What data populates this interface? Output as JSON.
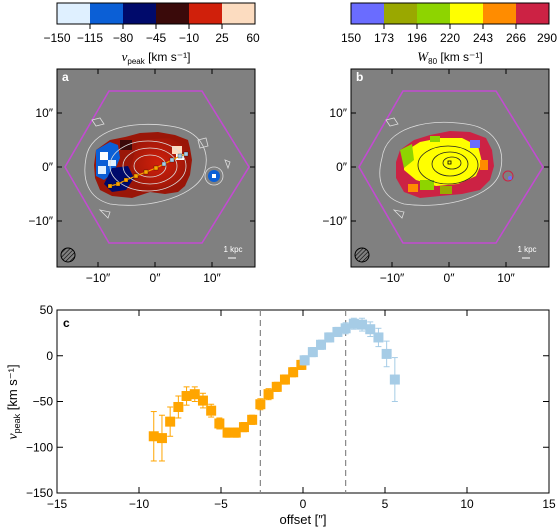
{
  "colorbars": [
    {
      "ticks": [
        "−150",
        "−115",
        "−80",
        "−45",
        "−10",
        "25",
        "60"
      ],
      "colors": [
        "#dff0ff",
        "#0b5fd6",
        "#000a6b",
        "#3a0a0a",
        "#d0200b",
        "#fcdcc0"
      ],
      "label_main": "v",
      "label_sub": "peak",
      "label_unit": " [km s⁻¹]"
    },
    {
      "ticks": [
        "150",
        "173",
        "196",
        "220",
        "243",
        "266",
        "290"
      ],
      "colors": [
        "#6a6cff",
        "#9aa800",
        "#8ed400",
        "#ffff00",
        "#ff8c00",
        "#cc2244"
      ],
      "label_main": "W",
      "label_sub": "80",
      "label_unit": " [km s⁻¹]"
    }
  ],
  "panels": [
    {
      "letter": "a",
      "yticks": [
        "10″",
        "0″",
        "−10″"
      ],
      "xticks": [
        "−10″",
        "0″",
        "10″"
      ],
      "scalebar": "1 kpc"
    },
    {
      "letter": "b",
      "yticks": [
        "10″",
        "0″",
        "−10″"
      ],
      "xticks": [
        "−10″",
        "0″",
        "10″"
      ],
      "scalebar": "1 kpc"
    }
  ],
  "chart_data": {
    "type": "scatter",
    "panel_letter": "c",
    "xlabel": "offset [″]",
    "ylabel_main": "v",
    "ylabel_sub": "peak",
    "ylabel_unit": " [km s⁻¹]",
    "xlim": [
      -15,
      15
    ],
    "ylim": [
      -150,
      50
    ],
    "xticks": [
      -15,
      -10,
      -5,
      0,
      5,
      10,
      15
    ],
    "yticks": [
      -150,
      -100,
      -50,
      0,
      50
    ],
    "xtick_labels": [
      "−15",
      "−10",
      "−5",
      "0",
      "5",
      "10",
      "15"
    ],
    "ytick_labels": [
      "−150",
      "−100",
      "−50",
      "0",
      "50"
    ],
    "vlines": [
      -2.6,
      2.6
    ],
    "series": [
      {
        "color": "#ffa500",
        "x": [
          -9.1,
          -8.6,
          -8.1,
          -7.6,
          -7.1,
          -6.6,
          -6.1,
          -5.6,
          -5.1,
          -4.6,
          -4.1,
          -3.6,
          -3.1,
          -2.6,
          -2.1,
          -1.6,
          -1.1,
          -0.6,
          -0.1
        ],
        "y": [
          -88,
          -90,
          -72,
          -56,
          -44,
          -42,
          -49,
          -60,
          -74,
          -84,
          -84,
          -78,
          -70,
          -53,
          -42,
          -34,
          -26,
          -18,
          -10
        ],
        "err": [
          27,
          25,
          16,
          12,
          10,
          8,
          8,
          7,
          6,
          5,
          5,
          5,
          5,
          6,
          6,
          5,
          5,
          5,
          5
        ]
      },
      {
        "color": "#a6cce6",
        "x": [
          0.1,
          0.6,
          1.1,
          1.6,
          2.1,
          2.6,
          3.1,
          3.6,
          4.1,
          4.6,
          5.1,
          5.6
        ],
        "y": [
          -5,
          4,
          12,
          20,
          26,
          30,
          35,
          34,
          29,
          20,
          2,
          -26
        ],
        "err": [
          5,
          5,
          5,
          5,
          5,
          6,
          6,
          7,
          8,
          10,
          14,
          24
        ]
      }
    ]
  }
}
